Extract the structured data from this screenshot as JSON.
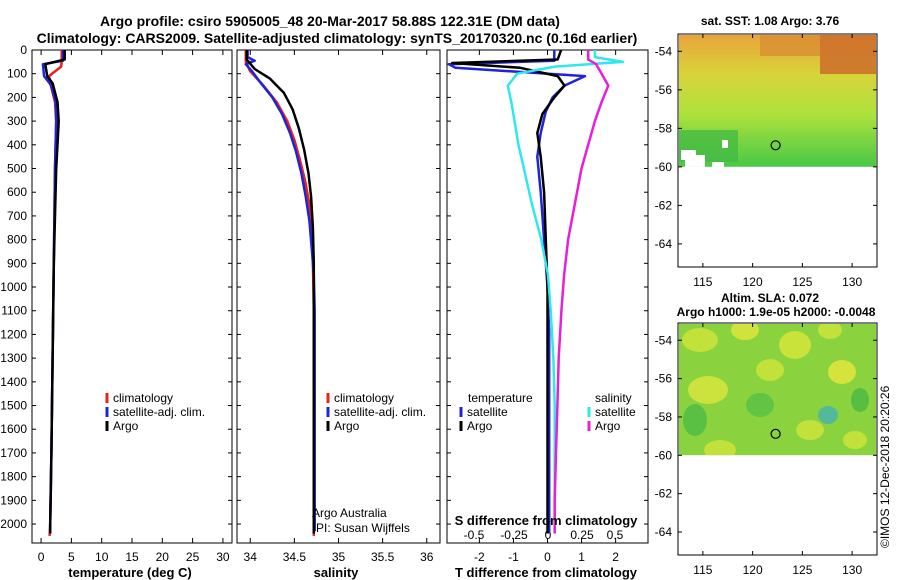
{
  "header": {
    "line1": "Argo profile: csiro 5905005_48 20-Mar-2017 58.88S 122.31E (DM data)",
    "line2": "Climatology: CARS2009. Satellite-adjusted climatology: synTS_20170320.nc (0.16d earlier)"
  },
  "colors": {
    "climatology": "#e8231c",
    "satellite_adj": "#1f24d6",
    "argo": "#000000",
    "sat_t": "#1f24d6",
    "sat_s": "#2ee8ee",
    "argo_t": "#000000",
    "argo_s": "#e81fd8"
  },
  "chart_data": [
    {
      "type": "line",
      "name": "temperature-profile",
      "xlabel": "temperature (deg C)",
      "ylabel": "",
      "xlim": [
        -1.5,
        31.5
      ],
      "ylim": [
        2080,
        0
      ],
      "xticks": [
        "0",
        "5",
        "10",
        "15",
        "20",
        "25",
        "30"
      ],
      "yticks": [
        "0",
        "100",
        "200",
        "300",
        "400",
        "500",
        "600",
        "700",
        "800",
        "900",
        "1000",
        "1100",
        "1200",
        "1300",
        "1400",
        "1500",
        "1600",
        "1700",
        "1800",
        "1900",
        "2000"
      ],
      "legend": [
        "climatology",
        "satellite-adj. clim.",
        "Argo"
      ],
      "series": [
        {
          "name": "climatology",
          "color_key": "climatology",
          "x": [
            3.4,
            3.4,
            3.3,
            1.3,
            1.5,
            2.3,
            2.5,
            2.4,
            2.3,
            2.2,
            2.1,
            2.0,
            1.9,
            1.8,
            1.7,
            1.6,
            1.5,
            1.4
          ],
          "y": [
            0,
            50,
            70,
            110,
            140,
            220,
            300,
            400,
            500,
            700,
            900,
            1100,
            1300,
            1500,
            1700,
            1850,
            2000,
            2050
          ]
        },
        {
          "name": "satellite-adj. clim.",
          "color_key": "satellite_adj",
          "x": [
            3.6,
            3.6,
            0.3,
            0.5,
            1.7,
            2.4,
            2.5,
            2.4,
            2.3,
            2.2,
            2.1,
            2.0,
            1.9,
            1.8,
            1.7,
            1.6,
            1.5,
            1.5
          ],
          "y": [
            0,
            45,
            60,
            110,
            150,
            220,
            300,
            400,
            500,
            700,
            900,
            1100,
            1300,
            1500,
            1700,
            1850,
            2000,
            2040
          ]
        },
        {
          "name": "Argo",
          "color_key": "argo",
          "x": [
            3.9,
            3.9,
            0.7,
            1.0,
            1.9,
            2.7,
            2.9,
            2.7,
            2.5,
            2.3,
            2.1,
            2.0,
            1.9,
            1.8,
            1.7,
            1.6,
            1.5,
            1.5
          ],
          "y": [
            0,
            40,
            60,
            110,
            140,
            220,
            300,
            400,
            500,
            700,
            900,
            1100,
            1300,
            1500,
            1700,
            1850,
            2000,
            2040
          ]
        }
      ]
    },
    {
      "type": "line",
      "name": "salinity-profile",
      "xlabel": "salinity",
      "xlim": [
        33.85,
        36.15
      ],
      "ylim": [
        2080,
        0
      ],
      "xticks": [
        "34",
        "34.5",
        "35",
        "35.5",
        "36"
      ],
      "legend": [
        "climatology",
        "satellite-adj. clim.",
        "Argo"
      ],
      "series": [
        {
          "name": "climatology",
          "color_key": "climatology",
          "x": [
            33.95,
            33.95,
            34.0,
            34.15,
            34.3,
            34.42,
            34.5,
            34.56,
            34.62,
            34.67,
            34.7,
            34.71,
            34.72,
            34.72,
            34.72,
            34.72,
            34.72,
            34.72
          ],
          "y": [
            0,
            50,
            90,
            150,
            220,
            300,
            380,
            460,
            550,
            650,
            760,
            900,
            1100,
            1300,
            1500,
            1700,
            1900,
            2050
          ]
        },
        {
          "name": "satellite-adj. clim.",
          "color_key": "satellite_adj",
          "x": [
            33.97,
            33.97,
            34.05,
            33.95,
            34.02,
            34.1,
            34.25,
            34.36,
            34.45,
            34.52,
            34.58,
            34.63,
            34.67,
            34.7,
            34.72,
            34.73,
            34.73,
            34.73,
            34.73,
            34.73,
            34.73
          ],
          "y": [
            0,
            30,
            45,
            60,
            90,
            130,
            200,
            270,
            350,
            430,
            520,
            620,
            720,
            850,
            950,
            1100,
            1300,
            1500,
            1700,
            1900,
            2030
          ]
        },
        {
          "name": "Argo",
          "color_key": "argo",
          "x": [
            33.96,
            33.96,
            34.05,
            34.22,
            34.38,
            34.48,
            34.55,
            34.61,
            34.66,
            34.69,
            34.71,
            34.72,
            34.72,
            34.72,
            34.72,
            34.72
          ],
          "y": [
            0,
            40,
            80,
            120,
            180,
            250,
            330,
            420,
            520,
            620,
            750,
            900,
            1200,
            1500,
            1800,
            2040
          ]
        }
      ],
      "annotations": [
        "Argo Australia",
        "PI: Susan Wijffels"
      ]
    },
    {
      "type": "line",
      "name": "difference-profile",
      "xlabel": "T difference from climatology",
      "xlim_t": [
        -2.95,
        2.95
      ],
      "xticks_t": [
        "-2",
        "-1",
        "0",
        "1",
        "2"
      ],
      "xlabel_s": "S difference from climatology",
      "xticks_s": [
        "-0.5",
        "-0.25",
        "0",
        "0.25",
        "0.5"
      ],
      "ylim": [
        2080,
        0
      ],
      "legend_t_title": "temperature",
      "legend_s_title": "salinity",
      "legend_t": [
        "satellite",
        "Argo"
      ],
      "legend_s": [
        "satellite",
        "Argo"
      ],
      "series": [
        {
          "name": "temperature satellite",
          "color_key": "sat_t",
          "x": [
            0.2,
            0.2,
            -2.9,
            -2.7,
            1.1,
            0.5,
            0.15,
            -0.05,
            -0.2,
            -0.3,
            -0.2,
            -0.1,
            0.0,
            0.05,
            0.05,
            0.05,
            0.05,
            0.05
          ],
          "y": [
            0,
            45,
            60,
            75,
            110,
            150,
            200,
            260,
            350,
            450,
            600,
            800,
            1000,
            1200,
            1400,
            1600,
            1800,
            2040
          ]
        },
        {
          "name": "temperature Argo",
          "color_key": "argo_t",
          "x": [
            0.4,
            0.3,
            -2.8,
            -0.8,
            0.3,
            0.5,
            0.2,
            -0.15,
            -0.3,
            -0.2,
            -0.1,
            -0.05,
            0.0,
            0.0,
            0.0,
            0.0,
            0.0,
            0.0
          ],
          "y": [
            0,
            40,
            55,
            75,
            110,
            150,
            200,
            270,
            350,
            450,
            600,
            800,
            1000,
            1200,
            1400,
            1600,
            1800,
            2040
          ]
        },
        {
          "name": "salinity satellite",
          "color_key": "sat_s",
          "x": [
            0.35,
            0.35,
            0.56,
            0.05,
            -0.23,
            -0.3,
            -0.27,
            -0.25,
            -0.22,
            -0.18,
            -0.12,
            -0.05,
            0.0,
            0.02,
            0.04,
            0.05,
            0.05,
            0.05
          ],
          "y": [
            0,
            30,
            50,
            70,
            100,
            150,
            230,
            300,
            400,
            500,
            650,
            800,
            950,
            1100,
            1300,
            1500,
            1800,
            2040
          ]
        },
        {
          "name": "salinity Argo",
          "color_key": "argo_s",
          "x": [
            0.3,
            0.3,
            0.36,
            0.4,
            0.45,
            0.4,
            0.35,
            0.3,
            0.25,
            0.2,
            0.15,
            0.12,
            0.1,
            0.08,
            0.07,
            0.06,
            0.05,
            0.05
          ],
          "y": [
            0,
            40,
            60,
            100,
            150,
            220,
            300,
            400,
            500,
            650,
            800,
            950,
            1100,
            1300,
            1500,
            1700,
            1900,
            2040
          ]
        }
      ]
    },
    {
      "type": "heatmap",
      "name": "sst-map",
      "title": "sat. SST: 1.08 Argo: 3.76",
      "xticks": [
        "115",
        "120",
        "125",
        "130"
      ],
      "yticks": [
        "-54",
        "-56",
        "-58",
        "-60",
        "-62",
        "-64"
      ],
      "xlim": [
        112.5,
        132.5
      ],
      "ylim": [
        -65.2,
        -53.1
      ],
      "profile_location": {
        "lon": 122.31,
        "lat": -58.88
      }
    },
    {
      "type": "heatmap",
      "name": "sla-map",
      "title": "Altim. SLA: 0.072",
      "subtitle": "Argo h1000: 1.9e-05 h2000: -0.0048",
      "xticks": [
        "115",
        "120",
        "125",
        "130"
      ],
      "yticks": [
        "-54",
        "-56",
        "-58",
        "-60",
        "-62",
        "-64"
      ],
      "xlim": [
        112.5,
        132.5
      ],
      "ylim": [
        -65.2,
        -53.1
      ],
      "profile_location": {
        "lon": 122.31,
        "lat": -58.88
      }
    }
  ],
  "credit": "©IMOS 12-Dec-2018 20:20:26"
}
